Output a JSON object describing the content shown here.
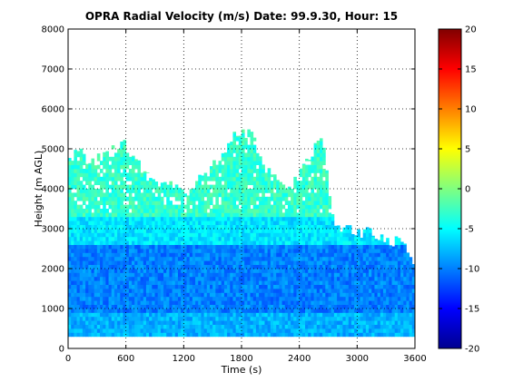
{
  "chart_data": {
    "type": "heatmap",
    "title": "OPRA Radial Velocity (m/s)  Date: 99.9.30, Hour: 15",
    "xlabel": "Time (s)",
    "ylabel": "Height (m AGL)",
    "xlim": [
      0,
      3600
    ],
    "ylim": [
      0,
      8000
    ],
    "x_ticks": [
      0,
      600,
      1200,
      1800,
      2400,
      3000,
      3600
    ],
    "x_tick_labels": [
      "0",
      "600",
      "1200",
      "1800",
      "2400",
      "3000",
      "3600"
    ],
    "y_ticks": [
      0,
      1000,
      2000,
      3000,
      4000,
      5000,
      6000,
      7000,
      8000
    ],
    "y_tick_labels": [
      "0",
      "1000",
      "2000",
      "3000",
      "4000",
      "5000",
      "6000",
      "7000",
      "8000"
    ],
    "grid": true,
    "colorbar": {
      "range": [
        -20,
        20
      ],
      "ticks": [
        -20,
        -15,
        -10,
        -5,
        0,
        5,
        10,
        15,
        20
      ],
      "tick_labels": [
        "-20",
        "-15",
        "-10",
        "-5",
        "0",
        "5",
        "10",
        "15",
        "20"
      ],
      "colormap": "jet"
    },
    "data_coverage": {
      "min_height": 300,
      "echo_top_profile": [
        [
          0,
          4700
        ],
        [
          120,
          4900
        ],
        [
          240,
          4650
        ],
        [
          360,
          4800
        ],
        [
          480,
          5000
        ],
        [
          600,
          5100
        ],
        [
          720,
          4600
        ],
        [
          840,
          4300
        ],
        [
          960,
          4000
        ],
        [
          1080,
          4200
        ],
        [
          1200,
          3800
        ],
        [
          1320,
          4100
        ],
        [
          1440,
          4400
        ],
        [
          1560,
          4700
        ],
        [
          1680,
          5200
        ],
        [
          1800,
          5450
        ],
        [
          1920,
          5300
        ],
        [
          2040,
          4600
        ],
        [
          2160,
          4400
        ],
        [
          2280,
          4100
        ],
        [
          2400,
          4300
        ],
        [
          2520,
          4900
        ],
        [
          2640,
          5200
        ],
        [
          2760,
          3000
        ],
        [
          2880,
          3000
        ],
        [
          3000,
          2900
        ],
        [
          3120,
          2900
        ],
        [
          3240,
          2800
        ],
        [
          3360,
          2700
        ],
        [
          3480,
          2600
        ],
        [
          3600,
          1900
        ]
      ],
      "velocity_layers": [
        {
          "height_range": [
            300,
            900
          ],
          "velocity": -8
        },
        {
          "height_range": [
            900,
            2600
          ],
          "velocity": -10
        },
        {
          "height_range": [
            2600,
            3300
          ],
          "velocity": -6
        },
        {
          "height_range": [
            3300,
            5500
          ],
          "velocity": -3
        }
      ]
    }
  }
}
